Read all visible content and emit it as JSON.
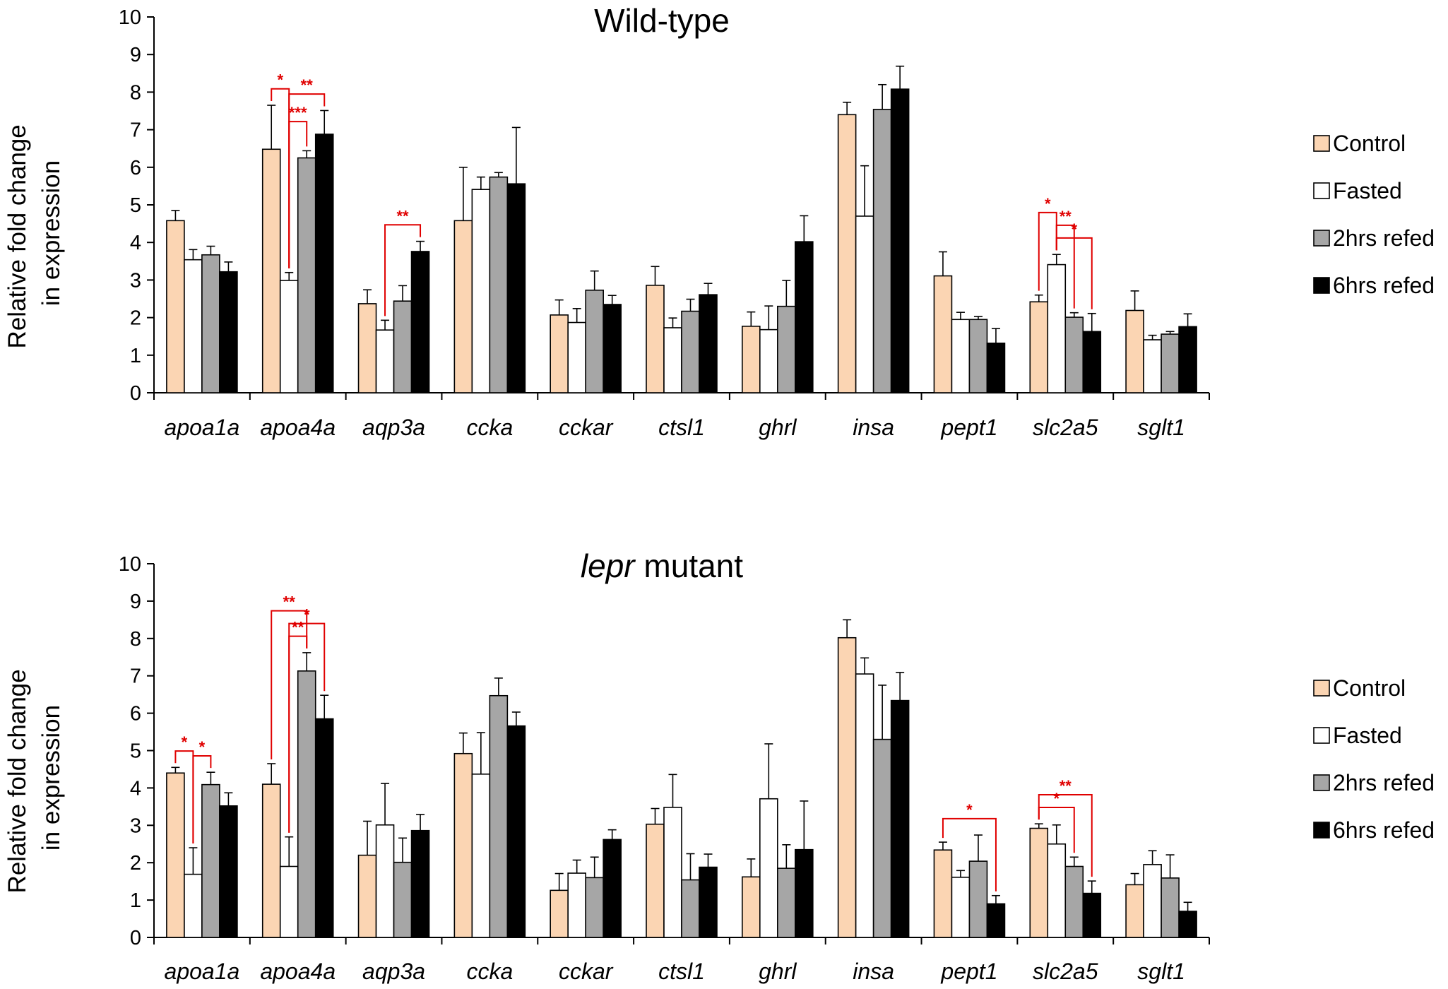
{
  "colors": {
    "Control": "#fbd5b3",
    "Fasted": "#ffffff",
    "2hrs refed": "#a6a6a6",
    "6hrs refed": "#000000",
    "significance": "#e00000",
    "axis": "#000000"
  },
  "chart_data": [
    {
      "type": "bar",
      "title": "Wild-type",
      "title_parts": [],
      "ylabel_lines": [
        "Relative fold change",
        "in expression"
      ],
      "ylim": [
        0,
        10
      ],
      "yticks": [
        "0",
        "1",
        "2",
        "3",
        "4",
        "5",
        "6",
        "7",
        "8",
        "9",
        "10"
      ],
      "categories": [
        "apoa1a",
        "apoa4a",
        "aqp3a",
        "ccka",
        "cckar",
        "ctsl1",
        "ghrl",
        "insa",
        "pept1",
        "slc2a5",
        "sglt1"
      ],
      "legend": [
        "Control",
        "Fasted",
        "2hrs refed",
        "6hrs refed"
      ],
      "legend_position": "right",
      "series": [
        {
          "name": "Control",
          "values": [
            4.58,
            6.48,
            2.37,
            4.58,
            2.07,
            2.86,
            1.77,
            7.4,
            3.11,
            2.42,
            2.19
          ],
          "errors": [
            0.27,
            1.17,
            0.37,
            1.42,
            0.4,
            0.5,
            0.38,
            0.33,
            0.64,
            0.18,
            0.52
          ]
        },
        {
          "name": "Fasted",
          "values": [
            3.54,
            2.99,
            1.67,
            5.41,
            1.87,
            1.73,
            1.68,
            4.7,
            1.95,
            3.41,
            1.41
          ],
          "errors": [
            0.27,
            0.21,
            0.26,
            0.33,
            0.37,
            0.26,
            0.63,
            1.34,
            0.19,
            0.27,
            0.12
          ]
        },
        {
          "name": "2hrs refed",
          "values": [
            3.67,
            6.25,
            2.44,
            5.74,
            2.73,
            2.17,
            2.3,
            7.54,
            1.95,
            2.01,
            1.56
          ],
          "errors": [
            0.23,
            0.19,
            0.41,
            0.12,
            0.51,
            0.32,
            0.69,
            0.66,
            0.08,
            0.12,
            0.07
          ]
        },
        {
          "name": "6hrs refed",
          "values": [
            3.22,
            6.88,
            3.76,
            5.56,
            2.35,
            2.61,
            4.02,
            8.08,
            1.32,
            1.63,
            1.76
          ],
          "errors": [
            0.26,
            0.63,
            0.27,
            1.5,
            0.24,
            0.3,
            0.69,
            0.61,
            0.39,
            0.48,
            0.34
          ]
        }
      ],
      "significance": [
        {
          "category": "apoa4a",
          "from": "Control",
          "to": "Fasted",
          "label": "*",
          "level": 0
        },
        {
          "category": "apoa4a",
          "from": "Fasted",
          "to": "6hrs refed",
          "label": "**",
          "level": 0
        },
        {
          "category": "apoa4a",
          "from": "Fasted",
          "to": "2hrs refed",
          "label": "***",
          "level": 1
        },
        {
          "category": "aqp3a",
          "from": "Fasted",
          "to": "6hrs refed",
          "label": "**",
          "level": 0
        },
        {
          "category": "slc2a5",
          "from": "Fasted",
          "to": "6hrs refed",
          "label": "*",
          "level": 0
        },
        {
          "category": "slc2a5",
          "from": "Fasted",
          "to": "2hrs refed",
          "label": "**",
          "level": 1
        },
        {
          "category": "slc2a5",
          "from": "Control",
          "to": "Fasted",
          "label": "*",
          "level": 2
        }
      ]
    },
    {
      "type": "bar",
      "title": "",
      "title_parts": [
        "lepr",
        " mutant"
      ],
      "ylabel_lines": [
        "Relative fold change",
        "in expression"
      ],
      "ylim": [
        0,
        10
      ],
      "yticks": [
        "0",
        "1",
        "2",
        "3",
        "4",
        "5",
        "6",
        "7",
        "8",
        "9",
        "10"
      ],
      "categories": [
        "apoa1a",
        "apoa4a",
        "aqp3a",
        "ccka",
        "cckar",
        "ctsl1",
        "ghrl",
        "insa",
        "pept1",
        "slc2a5",
        "sglt1"
      ],
      "legend": [
        "Control",
        "Fasted",
        "2hrs refed",
        "6hrs refed"
      ],
      "legend_position": "right",
      "series": [
        {
          "name": "Control",
          "values": [
            4.4,
            4.1,
            2.2,
            4.92,
            1.26,
            3.03,
            1.62,
            8.02,
            2.34,
            2.92,
            1.41
          ],
          "errors": [
            0.15,
            0.55,
            0.91,
            0.55,
            0.45,
            0.42,
            0.48,
            0.48,
            0.21,
            0.12,
            0.3
          ]
        },
        {
          "name": "Fasted",
          "values": [
            1.69,
            1.9,
            3.01,
            4.37,
            1.72,
            3.48,
            3.71,
            7.05,
            1.61,
            2.5,
            1.95
          ],
          "errors": [
            0.71,
            0.79,
            1.11,
            1.11,
            0.35,
            0.88,
            1.47,
            0.43,
            0.18,
            0.51,
            0.37
          ]
        },
        {
          "name": "2hrs refed",
          "values": [
            4.09,
            7.13,
            2.01,
            6.47,
            1.6,
            1.54,
            1.85,
            5.3,
            2.04,
            1.9,
            1.59
          ],
          "errors": [
            0.33,
            0.49,
            0.65,
            0.47,
            0.55,
            0.7,
            0.63,
            1.45,
            0.7,
            0.25,
            0.62
          ]
        },
        {
          "name": "6hrs refed",
          "values": [
            3.52,
            5.85,
            2.86,
            5.66,
            2.62,
            1.88,
            2.35,
            6.34,
            0.9,
            1.18,
            0.7
          ],
          "errors": [
            0.35,
            0.63,
            0.43,
            0.37,
            0.26,
            0.35,
            1.3,
            0.75,
            0.22,
            0.33,
            0.24
          ]
        }
      ],
      "significance": [
        {
          "category": "apoa1a",
          "from": "Control",
          "to": "Fasted",
          "label": "*",
          "level": 0
        },
        {
          "category": "apoa1a",
          "from": "Fasted",
          "to": "2hrs refed",
          "label": "*",
          "level": 0
        },
        {
          "category": "apoa4a",
          "from": "Control",
          "to": "2hrs refed",
          "label": "**",
          "level": 2
        },
        {
          "category": "apoa4a",
          "from": "Fasted",
          "to": "6hrs refed",
          "label": "*",
          "level": 1
        },
        {
          "category": "apoa4a",
          "from": "Fasted",
          "to": "2hrs refed",
          "label": "**",
          "level": 0
        },
        {
          "category": "pept1",
          "from": "Control",
          "to": "6hrs refed",
          "label": "*",
          "level": 0
        },
        {
          "category": "slc2a5",
          "from": "Control",
          "to": "6hrs refed",
          "label": "**",
          "level": 1
        },
        {
          "category": "slc2a5",
          "from": "Control",
          "to": "2hrs refed",
          "label": "*",
          "level": 0
        }
      ]
    }
  ]
}
